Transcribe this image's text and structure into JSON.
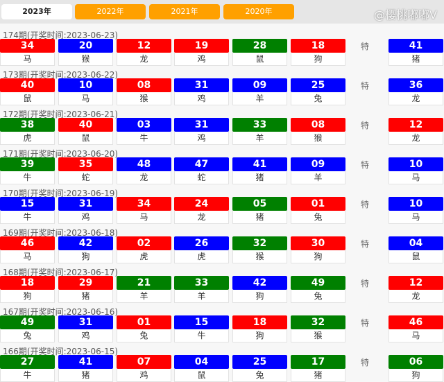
{
  "colors": {
    "red": "#ff0000",
    "blue": "#0000ff",
    "green": "#008000",
    "tab": "#ffa000"
  },
  "tabs": [
    {
      "label": "2023年",
      "active": true
    },
    {
      "label": "2022年"
    },
    {
      "label": "2021年"
    },
    {
      "label": "2020年"
    }
  ],
  "special_label": "特",
  "draws": [
    {
      "period": "174",
      "title": "174期(开奖时间:2023-06-23)",
      "balls": [
        [
          "34",
          "red",
          "马"
        ],
        [
          "20",
          "blue",
          "猴"
        ],
        [
          "12",
          "red",
          "龙"
        ],
        [
          "19",
          "red",
          "鸡"
        ],
        [
          "28",
          "green",
          "鼠"
        ],
        [
          "18",
          "red",
          "狗"
        ]
      ],
      "special": [
        "41",
        "blue",
        "猪"
      ]
    },
    {
      "period": "173",
      "title": "173期(开奖时间:2023-06-22)",
      "balls": [
        [
          "40",
          "red",
          "鼠"
        ],
        [
          "10",
          "blue",
          "马"
        ],
        [
          "08",
          "red",
          "猴"
        ],
        [
          "31",
          "blue",
          "鸡"
        ],
        [
          "09",
          "blue",
          "羊"
        ],
        [
          "25",
          "blue",
          "兔"
        ]
      ],
      "special": [
        "36",
        "blue",
        "龙"
      ]
    },
    {
      "period": "172",
      "title": "172期(开奖时间:2023-06-21)",
      "balls": [
        [
          "38",
          "green",
          "虎"
        ],
        [
          "40",
          "red",
          "鼠"
        ],
        [
          "03",
          "blue",
          "牛"
        ],
        [
          "31",
          "blue",
          "鸡"
        ],
        [
          "33",
          "green",
          "羊"
        ],
        [
          "08",
          "red",
          "猴"
        ]
      ],
      "special": [
        "12",
        "red",
        "龙"
      ]
    },
    {
      "period": "171",
      "title": "171期(开奖时间:2023-06-20)",
      "balls": [
        [
          "39",
          "green",
          "牛"
        ],
        [
          "35",
          "red",
          "蛇"
        ],
        [
          "48",
          "blue",
          "龙"
        ],
        [
          "47",
          "blue",
          "蛇"
        ],
        [
          "41",
          "blue",
          "猪"
        ],
        [
          "09",
          "blue",
          "羊"
        ]
      ],
      "special": [
        "10",
        "blue",
        "马"
      ]
    },
    {
      "period": "170",
      "title": "170期(开奖时间:2023-06-19)",
      "balls": [
        [
          "15",
          "blue",
          "牛"
        ],
        [
          "31",
          "blue",
          "鸡"
        ],
        [
          "34",
          "red",
          "马"
        ],
        [
          "24",
          "red",
          "龙"
        ],
        [
          "05",
          "green",
          "猪"
        ],
        [
          "01",
          "red",
          "兔"
        ]
      ],
      "special": [
        "10",
        "blue",
        "马"
      ]
    },
    {
      "period": "169",
      "title": "169期(开奖时间:2023-06-18)",
      "balls": [
        [
          "46",
          "red",
          "马"
        ],
        [
          "42",
          "blue",
          "狗"
        ],
        [
          "02",
          "red",
          "虎"
        ],
        [
          "26",
          "blue",
          "虎"
        ],
        [
          "32",
          "green",
          "猴"
        ],
        [
          "30",
          "red",
          "狗"
        ]
      ],
      "special": [
        "04",
        "blue",
        "鼠"
      ]
    },
    {
      "period": "168",
      "title": "168期(开奖时间:2023-06-17)",
      "balls": [
        [
          "18",
          "red",
          "狗"
        ],
        [
          "29",
          "red",
          "猪"
        ],
        [
          "21",
          "green",
          "羊"
        ],
        [
          "33",
          "green",
          "羊"
        ],
        [
          "42",
          "blue",
          "狗"
        ],
        [
          "49",
          "green",
          "兔"
        ]
      ],
      "special": [
        "12",
        "red",
        "龙"
      ]
    },
    {
      "period": "167",
      "title": "167期(开奖时间:2023-06-16)",
      "balls": [
        [
          "49",
          "green",
          "兔"
        ],
        [
          "31",
          "blue",
          "鸡"
        ],
        [
          "01",
          "red",
          "兔"
        ],
        [
          "15",
          "blue",
          "牛"
        ],
        [
          "18",
          "red",
          "狗"
        ],
        [
          "32",
          "green",
          "猴"
        ]
      ],
      "special": [
        "46",
        "red",
        "马"
      ]
    },
    {
      "period": "166",
      "title": "166期(开奖时间:2023-06-15)",
      "balls": [
        [
          "27",
          "green",
          "牛"
        ],
        [
          "41",
          "blue",
          "猪"
        ],
        [
          "07",
          "red",
          "鸡"
        ],
        [
          "04",
          "blue",
          "鼠"
        ],
        [
          "25",
          "blue",
          "兔"
        ],
        [
          "17",
          "green",
          "猪"
        ]
      ],
      "special": [
        "06",
        "green",
        "狗"
      ]
    }
  ],
  "watermark": "@樱桃嘟嘟V"
}
